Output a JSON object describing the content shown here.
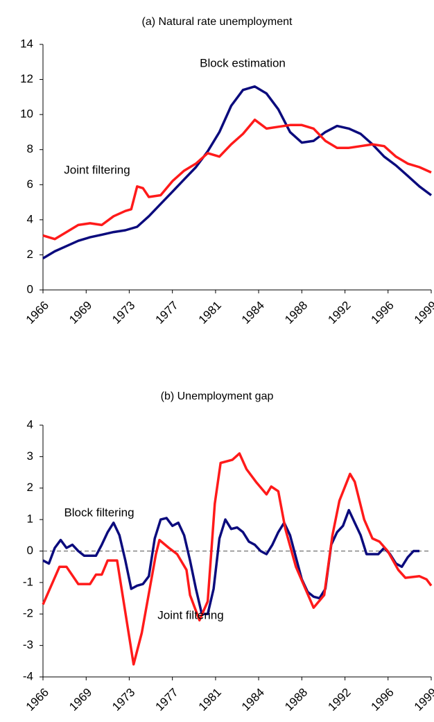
{
  "chart_data": [
    {
      "type": "line",
      "title": "(a) Natural rate unemployment",
      "xlim": [
        1966,
        1999
      ],
      "xticks": [
        {
          "value": 1966,
          "label": "1966"
        },
        {
          "value": 1969.67,
          "label": "1969"
        },
        {
          "value": 1973.33,
          "label": "1973"
        },
        {
          "value": 1977,
          "label": "1977"
        },
        {
          "value": 1980.67,
          "label": "1981"
        },
        {
          "value": 1984.33,
          "label": "1984"
        },
        {
          "value": 1988,
          "label": "1988"
        },
        {
          "value": 1991.67,
          "label": "1992"
        },
        {
          "value": 1995.33,
          "label": "1996"
        },
        {
          "value": 1999,
          "label": "1999"
        }
      ],
      "ylim": [
        0,
        14
      ],
      "yticks": [
        0,
        2,
        4,
        6,
        8,
        10,
        12,
        14
      ],
      "annotations": [
        "Block estimation",
        "Joint filtering"
      ],
      "series": [
        {
          "name": "Block estimation",
          "color": "#0b0b7d",
          "x": [
            1966,
            1967,
            1968,
            1969,
            1970,
            1971,
            1972,
            1973,
            1974,
            1975,
            1976,
            1977,
            1978,
            1979,
            1980,
            1981,
            1982,
            1983,
            1984,
            1985,
            1986,
            1987,
            1988,
            1989,
            1990,
            1991,
            1992,
            1993,
            1994,
            1995,
            1996,
            1997,
            1998,
            1999
          ],
          "values": [
            1.8,
            2.2,
            2.5,
            2.8,
            3.0,
            3.15,
            3.3,
            3.4,
            3.6,
            4.2,
            4.9,
            5.6,
            6.3,
            7.0,
            7.9,
            9.0,
            10.5,
            11.4,
            11.6,
            11.2,
            10.3,
            9.0,
            8.4,
            8.5,
            9.0,
            9.35,
            9.2,
            8.9,
            8.3,
            7.6,
            7.1,
            6.5,
            5.9,
            5.4
          ]
        },
        {
          "name": "Joint filtering",
          "color": "#ff1a1a",
          "x": [
            1966,
            1967,
            1968,
            1969,
            1970,
            1971,
            1972,
            1973,
            1973.5,
            1974,
            1974.5,
            1975,
            1976,
            1977,
            1978,
            1979,
            1980,
            1981,
            1982,
            1983,
            1984,
            1985,
            1986,
            1987,
            1988,
            1989,
            1990,
            1991,
            1992,
            1993,
            1994,
            1995,
            1996,
            1997,
            1998,
            1999
          ],
          "values": [
            3.1,
            2.9,
            3.3,
            3.7,
            3.8,
            3.7,
            4.2,
            4.5,
            4.6,
            5.9,
            5.8,
            5.3,
            5.4,
            6.2,
            6.8,
            7.2,
            7.8,
            7.6,
            8.3,
            8.9,
            9.7,
            9.2,
            9.3,
            9.4,
            9.4,
            9.2,
            8.5,
            8.1,
            8.1,
            8.2,
            8.3,
            8.2,
            7.6,
            7.2,
            7.0,
            6.7
          ]
        }
      ]
    },
    {
      "type": "line",
      "title": "(b) Unemployment gap",
      "xlim": [
        1966,
        1999
      ],
      "xticks": [
        {
          "value": 1966,
          "label": "1966"
        },
        {
          "value": 1969.67,
          "label": "1969"
        },
        {
          "value": 1973.33,
          "label": "1973"
        },
        {
          "value": 1977,
          "label": "1977"
        },
        {
          "value": 1980.67,
          "label": "1981"
        },
        {
          "value": 1984.33,
          "label": "1984"
        },
        {
          "value": 1988,
          "label": "1988"
        },
        {
          "value": 1991.67,
          "label": "1992"
        },
        {
          "value": 1995.33,
          "label": "1996"
        },
        {
          "value": 1999,
          "label": "1999"
        }
      ],
      "ylim": [
        -4,
        4
      ],
      "yticks": [
        -4,
        -3,
        -2,
        -1,
        0,
        1,
        2,
        3,
        4
      ],
      "hline": 0,
      "annotations": [
        "Block filtering",
        "Joint filtering"
      ],
      "series": [
        {
          "name": "Block filtering",
          "color": "#0b0b7d",
          "x": [
            1966,
            1966.5,
            1967,
            1967.5,
            1968,
            1968.5,
            1969,
            1969.5,
            1970,
            1970.5,
            1971,
            1971.5,
            1972,
            1972.5,
            1973,
            1973.5,
            1974,
            1974.5,
            1975,
            1975.5,
            1976,
            1976.5,
            1977,
            1977.5,
            1978,
            1978.5,
            1979,
            1979.5,
            1980,
            1980.5,
            1981,
            1981.5,
            1982,
            1982.5,
            1983,
            1983.5,
            1984,
            1984.5,
            1985,
            1985.5,
            1986,
            1986.5,
            1987,
            1987.5,
            1988,
            1988.5,
            1989,
            1989.5,
            1990,
            1990.5,
            1991,
            1991.5,
            1992,
            1992.5,
            1993,
            1993.5,
            1994,
            1994.5,
            1995,
            1995.5,
            1996,
            1996.5,
            1997,
            1997.5,
            1998
          ],
          "values": [
            -0.3,
            -0.4,
            0.1,
            0.35,
            0.1,
            0.2,
            0.0,
            -0.15,
            -0.15,
            -0.15,
            0.2,
            0.6,
            0.9,
            0.5,
            -0.3,
            -1.2,
            -1.1,
            -1.05,
            -0.8,
            0.4,
            1.0,
            1.05,
            0.8,
            0.9,
            0.5,
            -0.3,
            -1.2,
            -2.0,
            -2.0,
            -1.2,
            0.4,
            1.0,
            0.7,
            0.75,
            0.6,
            0.3,
            0.2,
            0.0,
            -0.1,
            0.2,
            0.6,
            0.9,
            0.5,
            -0.2,
            -0.9,
            -1.3,
            -1.45,
            -1.5,
            -1.2,
            0.2,
            0.6,
            0.8,
            1.3,
            0.9,
            0.5,
            -0.1,
            -0.1,
            -0.1,
            0.1,
            -0.1,
            -0.4,
            -0.5,
            -0.2,
            0.0,
            0.0
          ]
        },
        {
          "name": "Joint filtering",
          "color": "#ff1a1a",
          "x": [
            1966,
            1967.4,
            1968,
            1969,
            1970,
            1970.5,
            1971,
            1971.5,
            1972.3,
            1973.7,
            1974.4,
            1975.6,
            1975.9,
            1976.7,
            1977.4,
            1978.2,
            1978.5,
            1979.3,
            1980,
            1980.6,
            1981.1,
            1982.1,
            1982.7,
            1983.3,
            1984.1,
            1985,
            1985.4,
            1986,
            1986.6,
            1987.5,
            1989,
            1989.9,
            1990.6,
            1991.2,
            1992.1,
            1992.5,
            1993.3,
            1994,
            1994.6,
            1995.3,
            1996.2,
            1996.8,
            1998,
            1998.6,
            1999
          ],
          "values": [
            -1.7,
            -0.5,
            -0.5,
            -1.05,
            -1.05,
            -0.75,
            -0.75,
            -0.3,
            -0.3,
            -3.6,
            -2.6,
            -0.1,
            0.35,
            0.1,
            -0.1,
            -0.6,
            -1.4,
            -2.2,
            -1.6,
            1.5,
            2.8,
            2.9,
            3.1,
            2.6,
            2.2,
            1.8,
            2.05,
            1.9,
            0.7,
            -0.5,
            -1.8,
            -1.4,
            0.5,
            1.6,
            2.45,
            2.2,
            1.0,
            0.4,
            0.3,
            0.0,
            -0.6,
            -0.85,
            -0.8,
            -0.9,
            -1.1
          ]
        }
      ]
    }
  ]
}
